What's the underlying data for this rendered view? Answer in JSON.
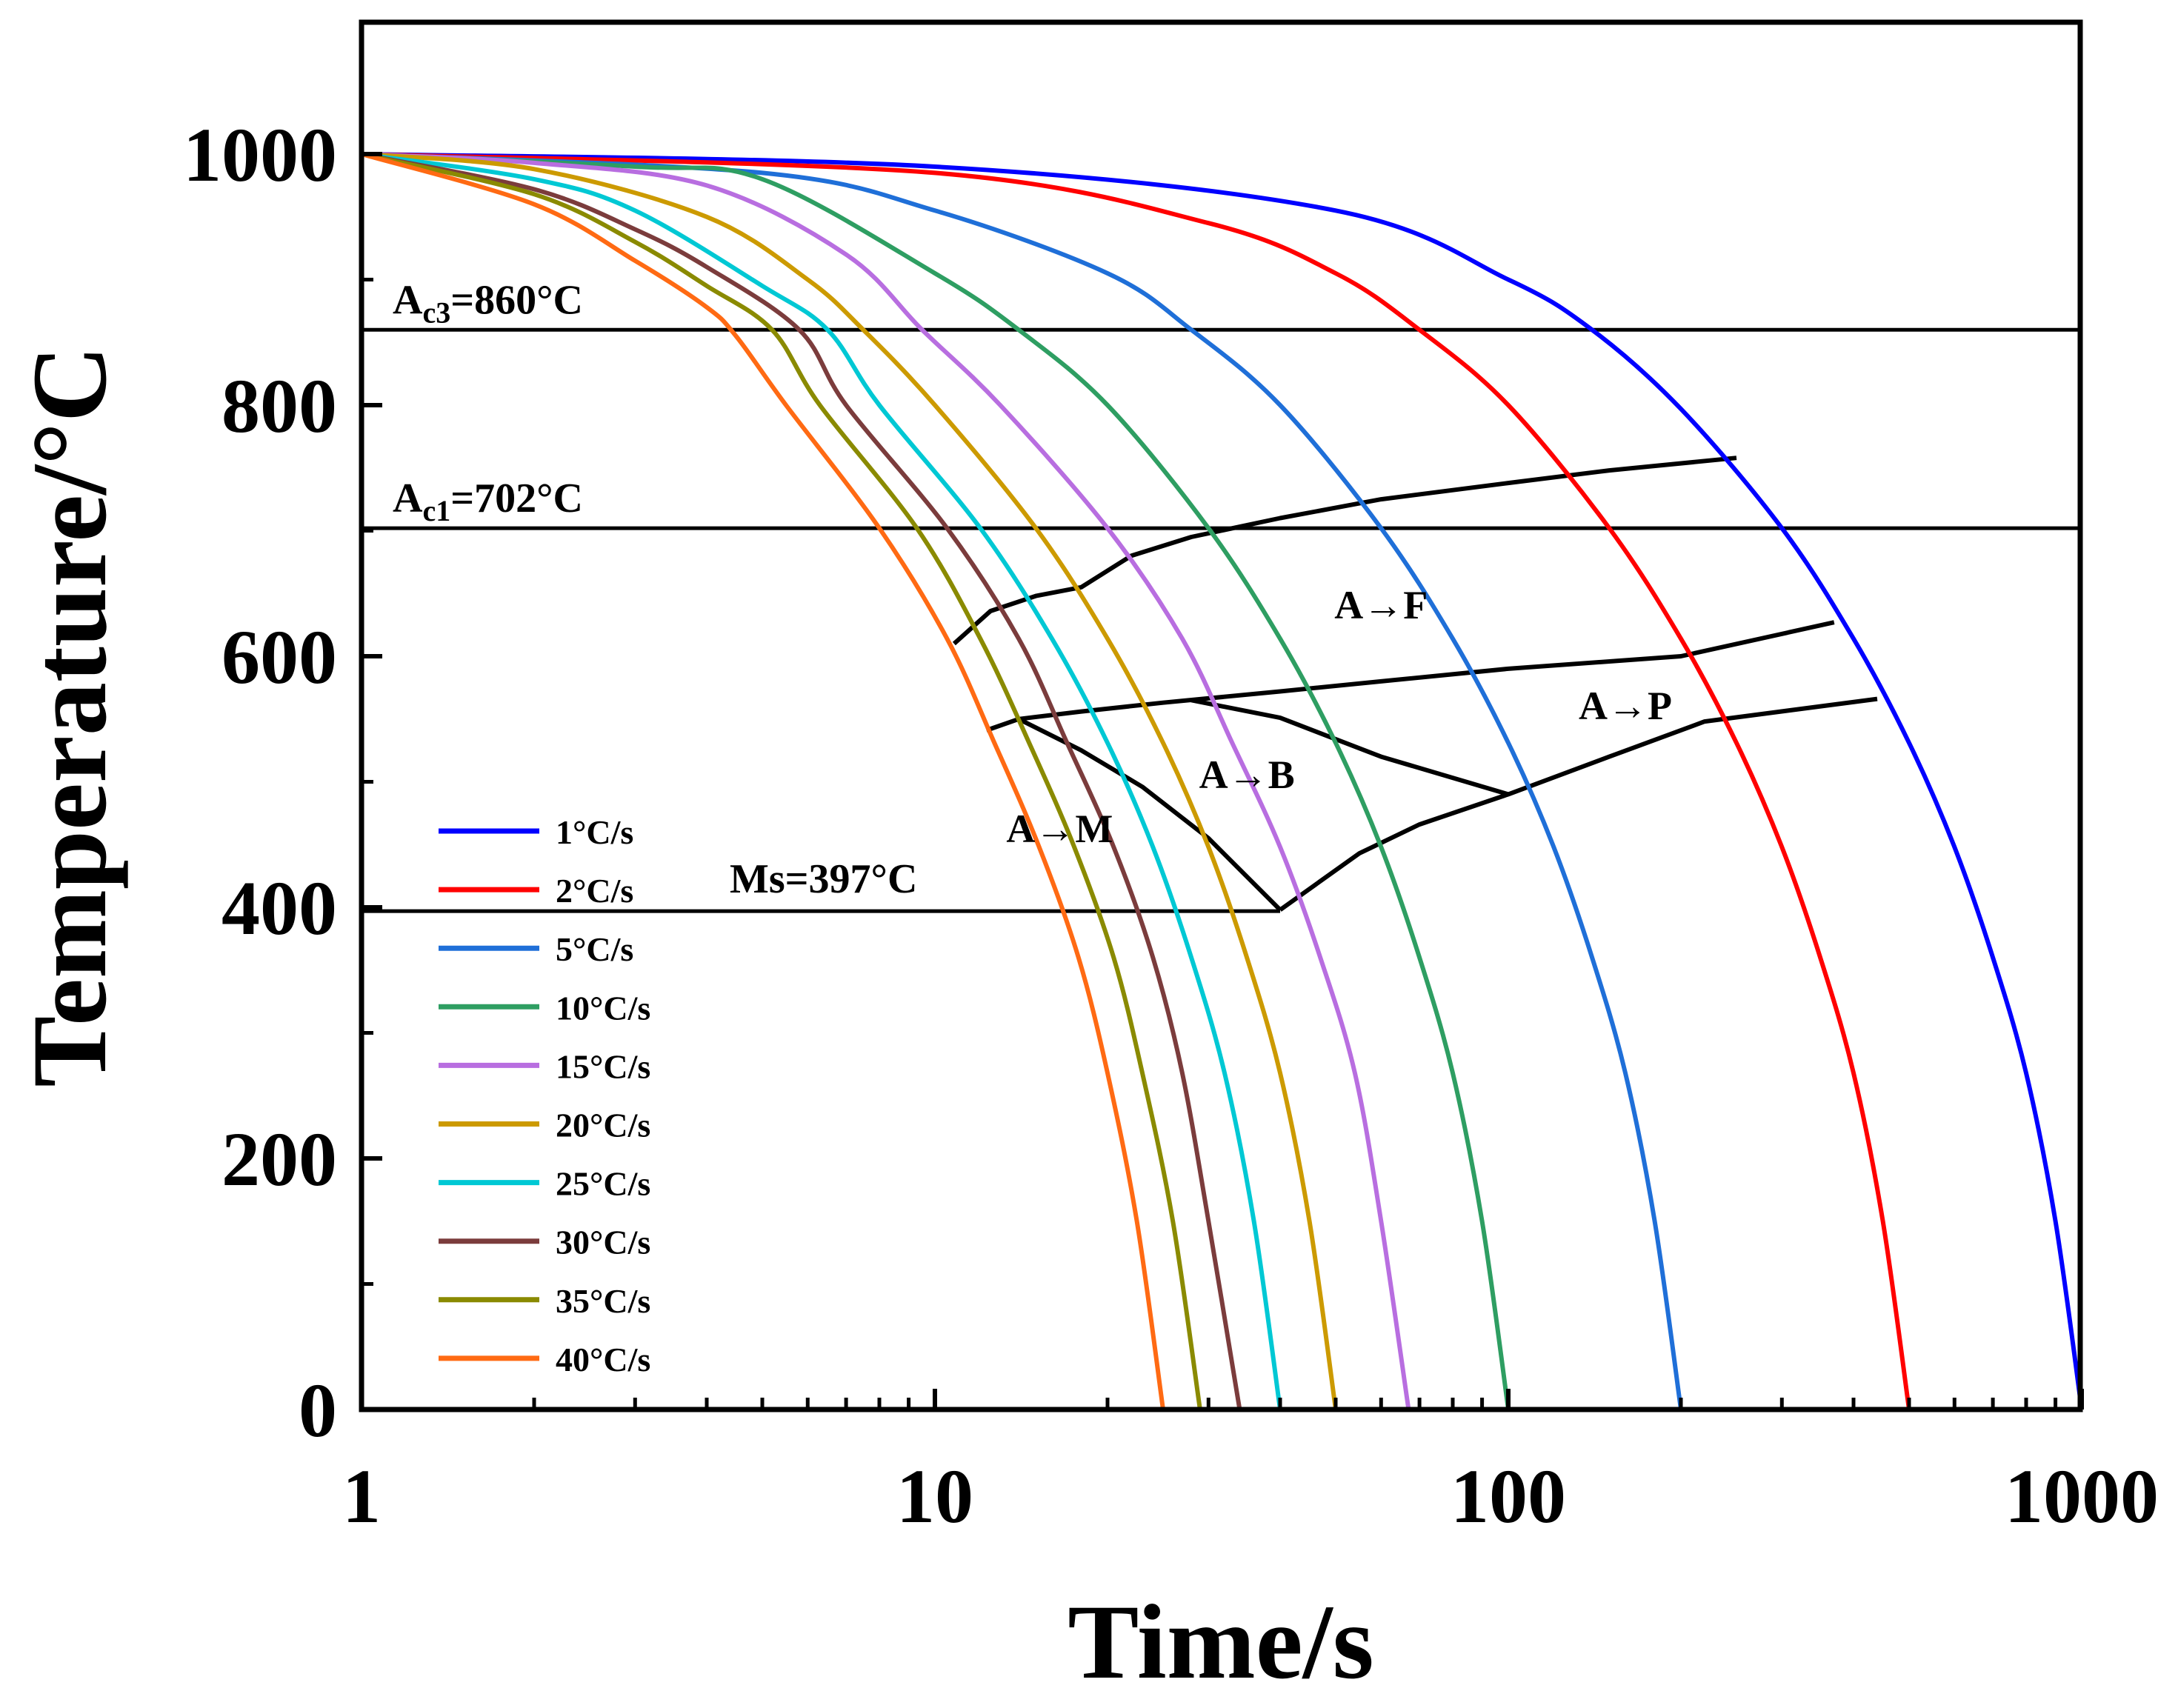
{
  "chart_data": {
    "type": "line",
    "title": "",
    "xlabel": "Time/s",
    "ylabel": "Temperature/°C",
    "xscale": "log",
    "xlim": [
      1,
      1000
    ],
    "ylim": [
      0,
      1100
    ],
    "x_ticks": [
      1,
      10,
      100,
      1000
    ],
    "x_tick_labels": [
      "1",
      "10",
      "100",
      "1000"
    ],
    "y_ticks": [
      0,
      200,
      400,
      600,
      800,
      1000
    ],
    "y_tick_labels": [
      "0",
      "200",
      "400",
      "600",
      "800",
      "1000"
    ],
    "legend_position": "lower-left",
    "series": [
      {
        "name": "1°C/s",
        "color": "#0000FF",
        "t_end": 1000,
        "x": [
          1,
          10,
          50,
          100,
          140,
          200,
          300,
          400,
          500,
          600,
          700,
          800,
          900,
          1000
        ],
        "y": [
          1000,
          990,
          955,
          900,
          860,
          797,
          702,
          614,
          531,
          448,
          360,
          268,
          150,
          0
        ]
      },
      {
        "name": "2°C/s",
        "color": "#FF0000",
        "t_end": 500,
        "x": [
          1,
          10,
          30,
          50,
          70,
          100,
          150,
          200,
          250,
          300,
          350,
          400,
          450,
          500
        ],
        "y": [
          1000,
          985,
          945,
          905,
          860,
          800,
          702,
          614,
          531,
          448,
          360,
          268,
          150,
          0
        ]
      },
      {
        "name": "5°C/s",
        "color": "#1F6FD8",
        "t_end": 200,
        "x": [
          1,
          5,
          10,
          20,
          28,
          40,
          60,
          80,
          100,
          120,
          140,
          160,
          180,
          200
        ],
        "y": [
          1000,
          985,
          955,
          905,
          860,
          800,
          702,
          614,
          531,
          448,
          360,
          268,
          150,
          0
        ]
      },
      {
        "name": "10°C/s",
        "color": "#2E9E62",
        "t_end": 100,
        "x": [
          1,
          3,
          5,
          10,
          14,
          20,
          30,
          40,
          50,
          60,
          70,
          80,
          90,
          100
        ],
        "y": [
          1000,
          990,
          980,
          905,
          860,
          800,
          702,
          614,
          531,
          448,
          360,
          268,
          150,
          0
        ]
      },
      {
        "name": "15°C/s",
        "color": "#B86EE0",
        "t_end": 67,
        "x": [
          1,
          2,
          4,
          7,
          9.5,
          13,
          20,
          27,
          33,
          40,
          47,
          54,
          60,
          67
        ],
        "y": [
          1000,
          993,
          975,
          920,
          860,
          800,
          702,
          614,
          531,
          448,
          360,
          268,
          150,
          0
        ]
      },
      {
        "name": "20°C/s",
        "color": "#CC9A00",
        "t_end": 50,
        "x": [
          1,
          2,
          4,
          6,
          7.5,
          10,
          15,
          20,
          25,
          30,
          35,
          40,
          45,
          50
        ],
        "y": [
          1000,
          988,
          950,
          900,
          860,
          800,
          702,
          614,
          531,
          448,
          360,
          268,
          150,
          0
        ]
      },
      {
        "name": "25°C/s",
        "color": "#00C8D4",
        "t_end": 40,
        "x": [
          1,
          2,
          3,
          5,
          6.5,
          8,
          12,
          16,
          20,
          24,
          28,
          32,
          36,
          40
        ],
        "y": [
          1000,
          980,
          955,
          895,
          860,
          800,
          702,
          614,
          531,
          448,
          360,
          268,
          150,
          0
        ]
      },
      {
        "name": "30°C/s",
        "color": "#7B3C3C",
        "t_end": 34,
        "x": [
          1,
          2,
          3,
          4,
          5.8,
          7,
          10.5,
          14,
          17,
          20.5,
          24,
          27,
          30,
          34
        ],
        "y": [
          1000,
          972,
          940,
          910,
          860,
          800,
          702,
          614,
          531,
          448,
          360,
          268,
          150,
          0
        ]
      },
      {
        "name": "35°C/s",
        "color": "#8A8A00",
        "t_end": 29,
        "x": [
          1,
          2,
          3,
          4,
          5.2,
          6.3,
          9.3,
          12,
          14.6,
          17.5,
          20.5,
          23,
          26,
          29
        ],
        "y": [
          1000,
          968,
          930,
          895,
          860,
          800,
          702,
          614,
          531,
          448,
          360,
          268,
          150,
          0
        ]
      },
      {
        "name": "40°C/s",
        "color": "#FF6A13",
        "t_end": 25,
        "x": [
          1,
          2,
          3,
          4,
          4.5,
          5.5,
          8,
          10.5,
          12.7,
          15.2,
          17.8,
          20,
          22.5,
          25
        ],
        "y": [
          1000,
          960,
          915,
          878,
          855,
          800,
          702,
          614,
          531,
          448,
          360,
          268,
          150,
          0
        ]
      }
    ],
    "reference_lines": [
      {
        "name": "Ac3",
        "label_main": "A",
        "label_sub": "c3",
        "label_rest": "=860°C",
        "value": 860
      },
      {
        "name": "Ac1",
        "label_main": "A",
        "label_sub": "c1",
        "label_rest": "=702°C",
        "value": 702
      },
      {
        "name": "Ms",
        "label": "Ms=397°C",
        "value": 397,
        "x_end": 40
      }
    ],
    "transformation_boundaries": [
      {
        "name": "ferrite-start",
        "x": [
          10.8,
          12.5,
          15,
          18,
          22,
          28,
          40,
          60,
          100,
          150,
          250
        ],
        "y": [
          610,
          636,
          648,
          655,
          680,
          695,
          710,
          725,
          738,
          748,
          758
        ]
      },
      {
        "name": "pearlite-start",
        "x": [
          12.3,
          14,
          18,
          25,
          40,
          60,
          100,
          200,
          370
        ],
        "y": [
          541,
          550,
          556,
          563,
          572,
          580,
          590,
          600,
          627
        ]
      },
      {
        "name": "pearlite-finish",
        "x": [
          40,
          55,
          70,
          100,
          150,
          220,
          440
        ],
        "y": [
          398,
          443,
          466,
          490,
          520,
          548,
          566
        ]
      },
      {
        "name": "bainite-finish",
        "x": [
          28,
          40,
          60,
          100
        ],
        "y": [
          565,
          551,
          520,
          490
        ]
      },
      {
        "name": "martensite-start-bound",
        "x": [
          14,
          18,
          23,
          30,
          40
        ],
        "y": [
          550,
          525,
          496,
          455,
          398
        ]
      }
    ],
    "annotations": [
      {
        "text": "A→F",
        "x": 60,
        "y": 630
      },
      {
        "text": "A→P",
        "x": 160,
        "y": 550
      },
      {
        "text": "A→B",
        "x": 35,
        "y": 495
      },
      {
        "text": "A→M",
        "x": 16.5,
        "y": 452
      }
    ]
  }
}
